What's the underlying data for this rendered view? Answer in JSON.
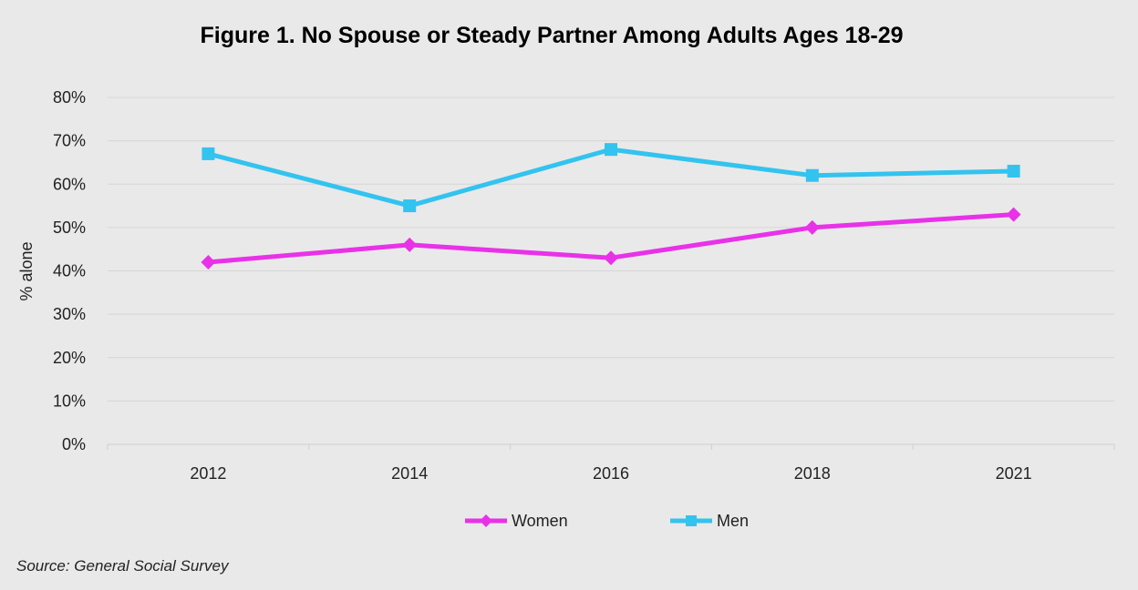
{
  "chart_data": {
    "type": "line",
    "title": "Figure 1. No Spouse or Steady Partner Among Adults Ages 18-29",
    "xlabel": "",
    "ylabel": "% alone",
    "categories": [
      "2012",
      "2014",
      "2016",
      "2018",
      "2021"
    ],
    "y_ticks": [
      "0%",
      "10%",
      "20%",
      "30%",
      "40%",
      "50%",
      "60%",
      "70%",
      "80%"
    ],
    "ylim": [
      0,
      80
    ],
    "grid": true,
    "legend_position": "bottom",
    "series": [
      {
        "name": "Women",
        "values": [
          42,
          46,
          43,
          50,
          53
        ],
        "color": "#e832e8",
        "marker": "diamond"
      },
      {
        "name": "Men",
        "values": [
          67,
          55,
          68,
          62,
          63
        ],
        "color": "#33c3ef",
        "marker": "square"
      }
    ],
    "source": "Source: General Social Survey"
  }
}
